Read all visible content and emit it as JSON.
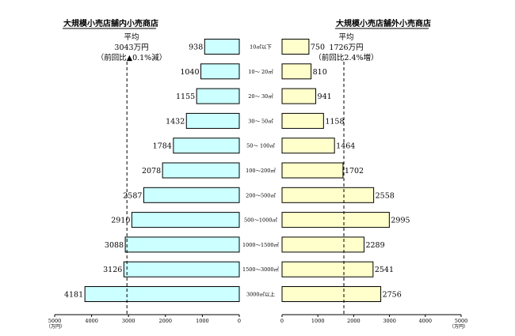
{
  "chart_data": {
    "type": "bar",
    "orientation": "horizontal-butterfly",
    "categories": [
      "10㎡以下",
      "10～ 20㎡",
      "20～ 30㎡",
      "30～ 50㎡",
      "50～ 100㎡",
      "100～200㎡",
      "200～500㎡",
      "500～1000㎡",
      "1000～1500㎡",
      "1500～3000㎡",
      "3000㎡以上"
    ],
    "axis_unit": "（万円）",
    "left": {
      "title": "大規模小売店舗内小売商店",
      "avg_label": "平均",
      "avg_value_text": "3043万円",
      "avg_change_text": "（前回比▲0.1%減）",
      "avg_value": 3043,
      "values": [
        938,
        1040,
        1155,
        1432,
        1784,
        2078,
        2587,
        2910,
        3088,
        3126,
        4181
      ],
      "value_labels": [
        "938",
        "1040",
        "1155",
        "1432",
        "1784",
        "2078",
        "2587",
        "2910",
        "3088",
        "3126",
        "4181"
      ],
      "xlim": [
        0,
        5000
      ],
      "ticks": [
        5000,
        4000,
        3000,
        2000,
        1000,
        0
      ],
      "tick_labels": [
        "5000",
        "4000",
        "3000",
        "2000",
        "1000",
        "0"
      ],
      "bar_color": "#ccffff"
    },
    "right": {
      "title": "大規模小売店舗外小売商店",
      "avg_label": "平均",
      "avg_value_text": "1726万円",
      "avg_change_text": "（前回比2.4%増）",
      "avg_value": 1726,
      "values": [
        750,
        810,
        941,
        1158,
        1464,
        1702,
        2558,
        2995,
        2289,
        2541,
        2756
      ],
      "value_labels": [
        "750",
        "810",
        "941",
        "1158",
        "1464",
        "1702",
        "2558",
        "2995",
        "2289",
        "2541",
        "2756"
      ],
      "xlim": [
        0,
        5000
      ],
      "ticks": [
        0,
        1000,
        2000,
        3000,
        4000,
        5000
      ],
      "tick_labels": [
        "0",
        "1000",
        "2000",
        "3000",
        "4000",
        "5000"
      ],
      "bar_color": "#ffffcc"
    },
    "grid": false,
    "legend": "none"
  }
}
